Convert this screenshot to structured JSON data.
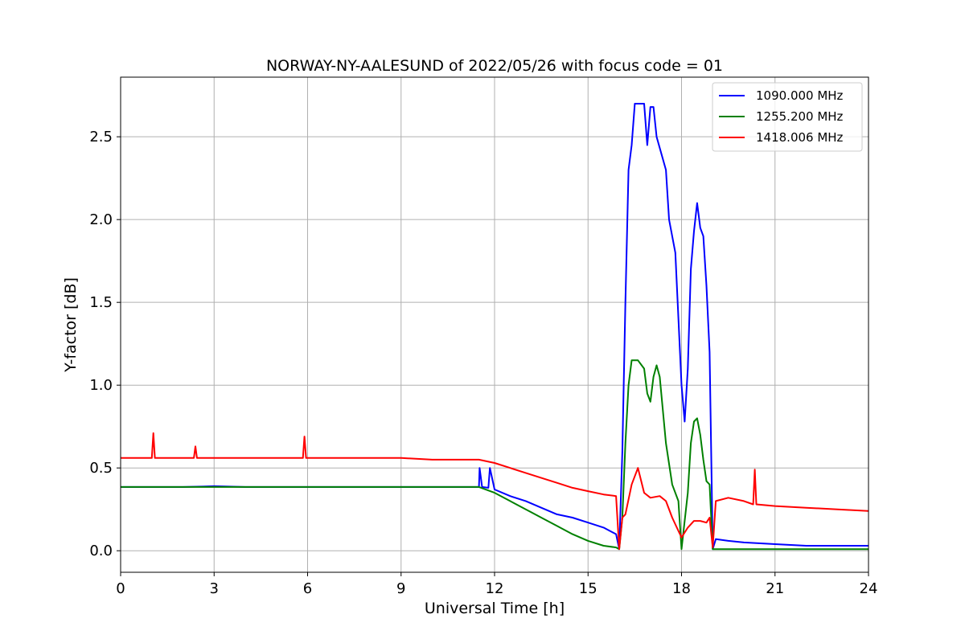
{
  "chart_data": {
    "type": "line",
    "title": "NORWAY-NY-AALESUND of 2022/05/26 with focus code = 01",
    "xlabel": "Universal Time [h]",
    "ylabel": "Y-factor [dB]",
    "xlim": [
      0,
      24
    ],
    "ylim": [
      -0.13,
      2.86
    ],
    "xticks": [
      0,
      3,
      6,
      9,
      12,
      15,
      18,
      21,
      24
    ],
    "xtick_labels": [
      "0",
      "3",
      "6",
      "9",
      "12",
      "15",
      "18",
      "21",
      "24"
    ],
    "yticks": [
      0.0,
      0.5,
      1.0,
      1.5,
      2.0,
      2.5
    ],
    "ytick_labels": [
      "0.0",
      "0.5",
      "1.0",
      "1.5",
      "2.0",
      "2.5"
    ],
    "grid": true,
    "legend_position": "top-right",
    "series": [
      {
        "name": "1090.000 MHz",
        "color": "#0000ff",
        "x": [
          0,
          1,
          2,
          3,
          4,
          5,
          6,
          7,
          8,
          9,
          10,
          11,
          11.5,
          11.52,
          11.6,
          11.8,
          11.85,
          12,
          12.5,
          13,
          13.5,
          14,
          14.5,
          15,
          15.5,
          15.9,
          16.0,
          16.1,
          16.2,
          16.3,
          16.4,
          16.5,
          16.8,
          16.9,
          17.0,
          17.1,
          17.2,
          17.5,
          17.6,
          17.8,
          18.0,
          18.1,
          18.2,
          18.3,
          18.4,
          18.5,
          18.6,
          18.7,
          18.8,
          18.9,
          19.0,
          19.1,
          19.5,
          20,
          21,
          22,
          23,
          24
        ],
        "y": [
          0.385,
          0.385,
          0.385,
          0.39,
          0.385,
          0.385,
          0.385,
          0.385,
          0.385,
          0.385,
          0.385,
          0.385,
          0.385,
          0.5,
          0.385,
          0.38,
          0.5,
          0.37,
          0.33,
          0.3,
          0.26,
          0.22,
          0.2,
          0.17,
          0.14,
          0.1,
          0.01,
          0.6,
          1.5,
          2.3,
          2.45,
          2.7,
          2.7,
          2.45,
          2.68,
          2.68,
          2.5,
          2.3,
          2.0,
          1.8,
          1.0,
          0.78,
          1.1,
          1.7,
          1.93,
          2.1,
          1.95,
          1.9,
          1.6,
          1.2,
          0.01,
          0.07,
          0.06,
          0.05,
          0.04,
          0.03,
          0.03,
          0.03
        ]
      },
      {
        "name": "1255.200 MHz",
        "color": "#008000",
        "x": [
          0,
          1,
          2,
          3,
          4,
          5,
          6,
          7,
          8,
          9,
          10,
          11,
          11.5,
          12,
          12.5,
          13,
          13.5,
          14,
          14.5,
          15,
          15.5,
          15.9,
          16.0,
          16.1,
          16.2,
          16.3,
          16.4,
          16.6,
          16.8,
          16.9,
          17.0,
          17.1,
          17.2,
          17.3,
          17.5,
          17.7,
          17.9,
          18.0,
          18.2,
          18.3,
          18.4,
          18.5,
          18.6,
          18.7,
          18.8,
          18.9,
          19.0,
          19.1,
          20,
          21,
          22,
          23,
          24
        ],
        "y": [
          0.385,
          0.385,
          0.385,
          0.385,
          0.385,
          0.385,
          0.385,
          0.385,
          0.385,
          0.385,
          0.385,
          0.385,
          0.385,
          0.35,
          0.3,
          0.25,
          0.2,
          0.15,
          0.1,
          0.06,
          0.03,
          0.02,
          0.01,
          0.2,
          0.65,
          1.0,
          1.15,
          1.15,
          1.1,
          0.95,
          0.9,
          1.05,
          1.12,
          1.05,
          0.65,
          0.4,
          0.3,
          0.01,
          0.35,
          0.65,
          0.78,
          0.8,
          0.7,
          0.55,
          0.42,
          0.4,
          0.01,
          0.01,
          0.01,
          0.01,
          0.01,
          0.01,
          0.01
        ]
      },
      {
        "name": "1418.006 MHz",
        "color": "#ff0000",
        "x": [
          0,
          1.0,
          1.05,
          1.1,
          2,
          2.35,
          2.4,
          2.45,
          3,
          4,
          5,
          5.85,
          5.9,
          5.95,
          7,
          8,
          9,
          10,
          11,
          11.5,
          12,
          12.5,
          13,
          13.5,
          14,
          14.5,
          15,
          15.5,
          15.9,
          16.0,
          16.1,
          16.2,
          16.4,
          16.6,
          16.8,
          17.0,
          17.3,
          17.5,
          17.7,
          17.9,
          18.0,
          18.2,
          18.4,
          18.6,
          18.8,
          18.9,
          19.0,
          19.1,
          19.5,
          20,
          20.3,
          20.35,
          20.4,
          21,
          22,
          23,
          24
        ],
        "y": [
          0.56,
          0.56,
          0.71,
          0.56,
          0.56,
          0.56,
          0.63,
          0.56,
          0.56,
          0.56,
          0.56,
          0.56,
          0.69,
          0.56,
          0.56,
          0.56,
          0.56,
          0.55,
          0.55,
          0.55,
          0.53,
          0.5,
          0.47,
          0.44,
          0.41,
          0.38,
          0.36,
          0.34,
          0.33,
          0.01,
          0.2,
          0.22,
          0.4,
          0.5,
          0.35,
          0.32,
          0.33,
          0.3,
          0.2,
          0.12,
          0.08,
          0.14,
          0.18,
          0.18,
          0.17,
          0.2,
          0.02,
          0.3,
          0.32,
          0.3,
          0.28,
          0.49,
          0.28,
          0.27,
          0.26,
          0.25,
          0.24
        ]
      }
    ]
  }
}
